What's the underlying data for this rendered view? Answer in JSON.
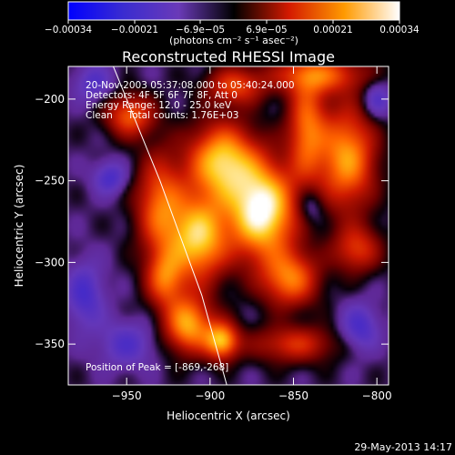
{
  "chart_data": {
    "type": "heatmap",
    "title": "Reconstructed RHESSI Image",
    "xlabel": "Heliocentric X (arcsec)",
    "ylabel": "Heliocentric Y (arcsec)",
    "xlim": [
      -985,
      -793
    ],
    "ylim": [
      -375,
      -180
    ],
    "x_ticks": [
      -950,
      -900,
      -850,
      -800
    ],
    "x_tick_labels": [
      "−950",
      "−900",
      "−850",
      "−800"
    ],
    "y_ticks": [
      -200,
      -250,
      -300,
      -350
    ],
    "y_tick_labels": [
      "−200",
      "−250",
      "−300",
      "−350"
    ],
    "colorbar": {
      "unit_label": "(photons cm⁻² s⁻¹ asec⁻²)",
      "range": [
        -0.00034,
        0.00034
      ],
      "tick_labels": [
        "−0.00034",
        "−0.00021",
        "−6.9e−05",
        "6.9e−05",
        "0.00021",
        "0.00034"
      ],
      "colors": [
        "#0000ff",
        "#3a2cd0",
        "#6a3ab8",
        "#000000",
        "#d41a00",
        "#ff9a00",
        "#ffffff"
      ]
    },
    "annotations": [
      "20-Nov-2003 05:37:08.000 to 05:40:24.000",
      "Detectors: 4F 5F 6F 7F 8F, Att 0",
      "Energy Range: 12.0 - 25.0 keV",
      "Clean     Total counts: 1.76E+03"
    ],
    "peak_label": "Position of Peak = [-869,-268]",
    "peak_position": [
      -869,
      -268
    ],
    "limb_line": [
      [
        -958,
        -180
      ],
      [
        -930,
        -250
      ],
      [
        -905,
        -320
      ],
      [
        -890,
        -375
      ]
    ],
    "blobs": [
      {
        "x": -869,
        "y": -268,
        "sx": 14,
        "sy": 20,
        "a": 1.0
      },
      {
        "x": -893,
        "y": -238,
        "sx": 14,
        "sy": 16,
        "a": 0.78
      },
      {
        "x": -907,
        "y": -285,
        "sx": 12,
        "sy": 18,
        "a": 0.8
      },
      {
        "x": -930,
        "y": -265,
        "sx": 10,
        "sy": 22,
        "a": 0.55
      },
      {
        "x": -852,
        "y": -310,
        "sx": 12,
        "sy": 12,
        "a": 0.58
      },
      {
        "x": -842,
        "y": -218,
        "sx": 8,
        "sy": 22,
        "a": 0.55
      },
      {
        "x": -818,
        "y": -236,
        "sx": 12,
        "sy": 22,
        "a": 0.68
      },
      {
        "x": -913,
        "y": -338,
        "sx": 10,
        "sy": 12,
        "a": 0.7
      },
      {
        "x": -893,
        "y": -348,
        "sx": 7,
        "sy": 8,
        "a": 0.72
      },
      {
        "x": -927,
        "y": -310,
        "sx": 8,
        "sy": 12,
        "a": 0.5
      },
      {
        "x": -948,
        "y": -210,
        "sx": 10,
        "sy": 9,
        "a": 0.52
      },
      {
        "x": -885,
        "y": -192,
        "sx": 12,
        "sy": 8,
        "a": 0.45
      },
      {
        "x": -835,
        "y": -185,
        "sx": 20,
        "sy": 8,
        "a": 0.5
      },
      {
        "x": -812,
        "y": -292,
        "sx": 10,
        "sy": 10,
        "a": 0.42
      },
      {
        "x": -850,
        "y": -350,
        "sx": 18,
        "sy": 8,
        "a": 0.4
      },
      {
        "x": -960,
        "y": -248,
        "sx": 7,
        "sy": 7,
        "a": -0.3
      },
      {
        "x": -975,
        "y": -320,
        "sx": 8,
        "sy": 14,
        "a": -0.3
      },
      {
        "x": -810,
        "y": -340,
        "sx": 8,
        "sy": 10,
        "a": -0.3
      },
      {
        "x": -950,
        "y": -350,
        "sx": 12,
        "sy": 10,
        "a": -0.25
      },
      {
        "x": -800,
        "y": -200,
        "sx": 6,
        "sy": 8,
        "a": -0.28
      },
      {
        "x": -840,
        "y": -265,
        "sx": 6,
        "sy": 8,
        "a": -0.22
      },
      {
        "x": -970,
        "y": -190,
        "sx": 8,
        "sy": 8,
        "a": -0.25
      }
    ]
  },
  "footer_timestamp": "29-May-2013 14:17"
}
